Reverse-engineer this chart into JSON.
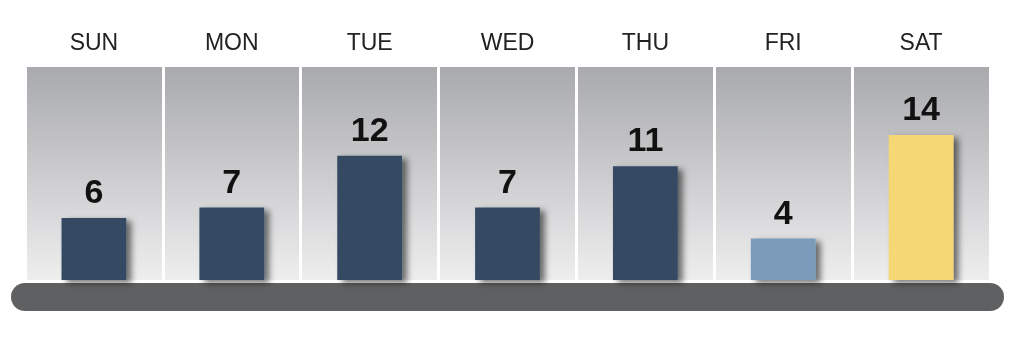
{
  "chart_data": {
    "type": "bar",
    "categories": [
      "SUN",
      "MON",
      "TUE",
      "WED",
      "THU",
      "FRI",
      "SAT"
    ],
    "values": [
      6,
      7,
      12,
      7,
      11,
      4,
      14
    ],
    "colors": [
      "#354a63",
      "#354a63",
      "#354a63",
      "#354a63",
      "#354a63",
      "#7b9bbb",
      "#f5d774"
    ],
    "data_labels": true
  }
}
